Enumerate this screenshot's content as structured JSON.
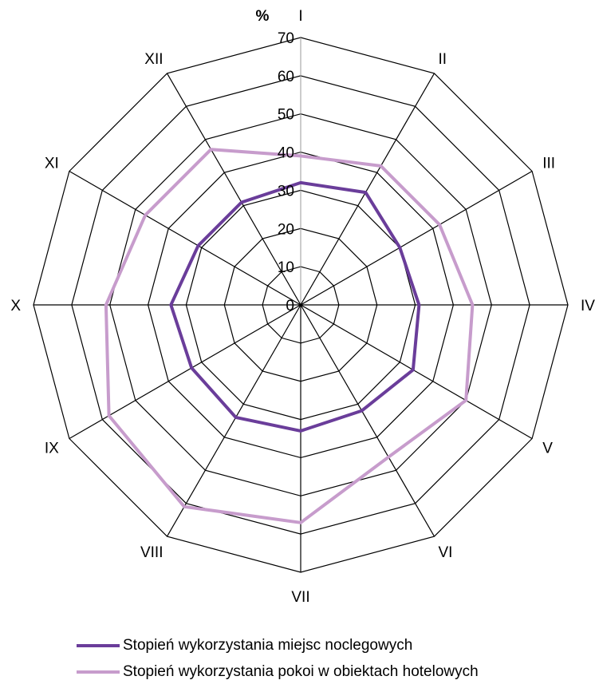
{
  "chart_data": {
    "type": "radar",
    "unit_label": "%",
    "categories": [
      "I",
      "II",
      "III",
      "IV",
      "V",
      "VI",
      "VII",
      "VIII",
      "IX",
      "X",
      "XI",
      "XII"
    ],
    "r_ticks": [
      0,
      10,
      20,
      30,
      40,
      50,
      60,
      70
    ],
    "rlim": [
      0,
      70
    ],
    "series": [
      {
        "name": "Stopień wykorzystania miejsc noclegowych",
        "color": "#6a3d9a",
        "values": [
          32,
          34,
          30,
          31,
          34,
          32,
          33,
          34,
          33,
          34,
          31,
          31
        ]
      },
      {
        "name": "Stopień wykorzystania pokoi w obiektach hotelowych",
        "color": "#c79ccc",
        "values": [
          39,
          42,
          42,
          45,
          50,
          46,
          57,
          61,
          58,
          51,
          47,
          47
        ]
      }
    ],
    "legend_position": "bottom"
  }
}
